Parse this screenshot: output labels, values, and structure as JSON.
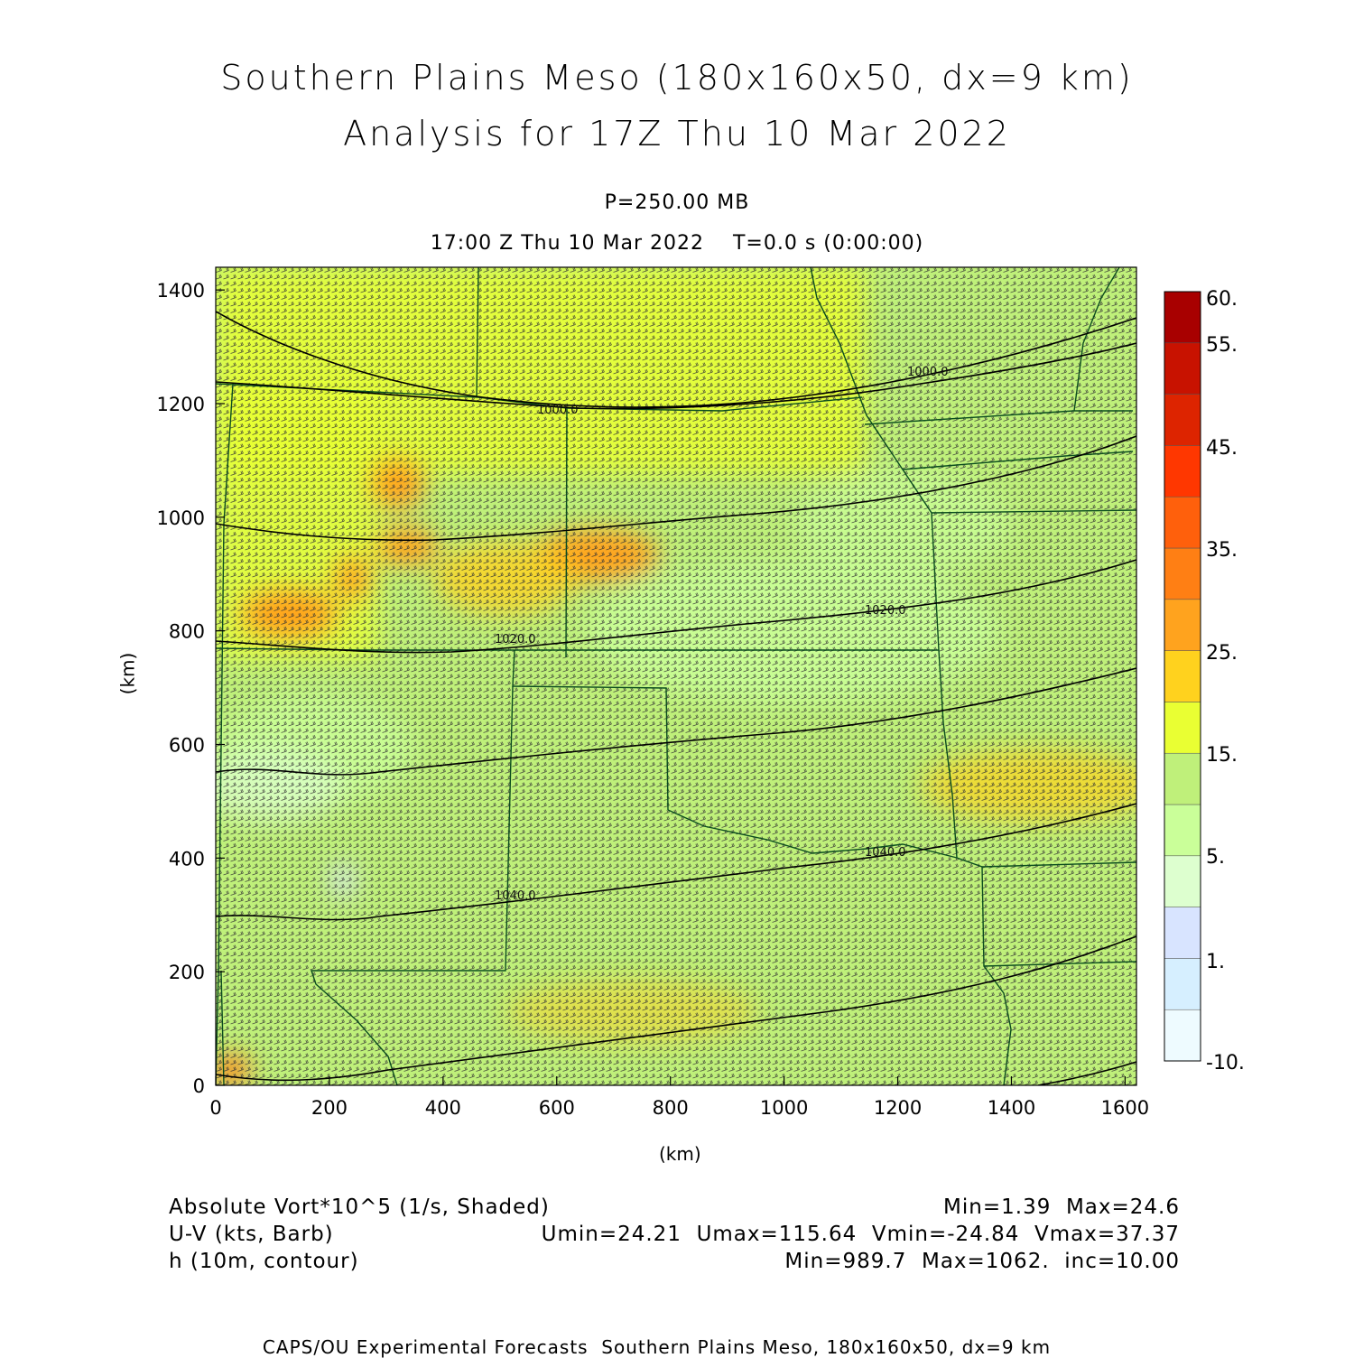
{
  "header": {
    "title_line1": "Southern Plains Meso (180x160x50, dx=9 km)",
    "title_line2": "Analysis for 17Z Thu 10 Mar 2022",
    "pressure_level": "P=250.00 MB",
    "valid_time": "17:00 Z Thu 10 Mar 2022    T=0.0 s (0:00:00)"
  },
  "axes": {
    "x_label": "(km)",
    "y_label": "(km)",
    "x_ticks": [
      "0",
      "200",
      "400",
      "600",
      "800",
      "1000",
      "1200",
      "1400",
      "1600"
    ],
    "y_ticks": [
      "0",
      "200",
      "400",
      "600",
      "800",
      "1000",
      "1200",
      "1400"
    ],
    "x_range_km": [
      0,
      1620
    ],
    "y_range_km": [
      0,
      1440
    ]
  },
  "colorbar": {
    "labels": [
      "60.",
      "55.",
      "45.",
      "35.",
      "25.",
      "15.",
      "5.",
      "1.",
      "-10."
    ],
    "colors_bottom_to_top": [
      "#eefbff",
      "#d6efff",
      "#d8e4ff",
      "#ddffcf",
      "#caff99",
      "#bff07a",
      "#e9ff33",
      "#ffd21e",
      "#ffa31e",
      "#ff7f14",
      "#ff600c",
      "#ff3700",
      "#dd2400",
      "#c81200",
      "#a80000"
    ]
  },
  "contours": {
    "labels": [
      "1000.0",
      "1000.0",
      "1020.0",
      "1020.0",
      "1040.0",
      "1040.0"
    ]
  },
  "legend": {
    "field1_name": "Absolute Vort*10^5 (1/s, Shaded)",
    "field1_stats": "Min=1.39  Max=24.6",
    "field2_name": "U-V (kts, Barb)",
    "field2_stats": "Umin=24.21  Umax=115.64  Vmin=-24.84  Vmax=37.37",
    "field3_name": "h (10m, contour)",
    "field3_stats": "Min=989.7  Max=1062.  inc=10.00"
  },
  "footer": "CAPS/OU Experimental Forecasts  Southern Plains Meso, 180x160x50, dx=9 km"
}
